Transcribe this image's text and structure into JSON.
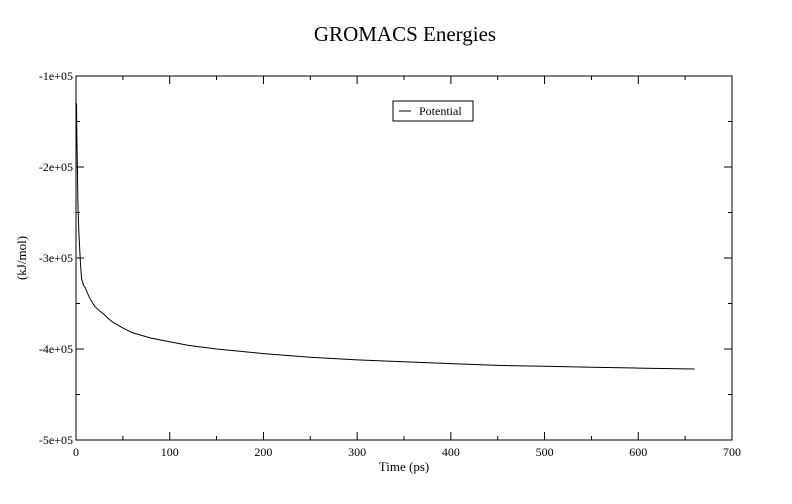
{
  "chart_data": {
    "type": "line",
    "title": "GROMACS Energies",
    "xlabel": "Time (ps)",
    "ylabel": "(kJ/mol)",
    "xlim": [
      0,
      700
    ],
    "ylim": [
      -500000,
      -100000
    ],
    "xticks": [
      0,
      100,
      200,
      300,
      400,
      500,
      600,
      700
    ],
    "xtick_labels": [
      "0",
      "100",
      "200",
      "300",
      "400",
      "500",
      "600",
      "700"
    ],
    "yticks": [
      -100000,
      -200000,
      -300000,
      -400000,
      -500000
    ],
    "ytick_labels": [
      "-1e+05",
      "-2e+05",
      "-3e+05",
      "-4e+05",
      "-5e+05"
    ],
    "grid": false,
    "legend_position": "top-center",
    "series": [
      {
        "name": "Potential",
        "color": "#000000",
        "x": [
          0,
          0.5,
          1,
          1.5,
          2,
          3,
          4,
          5,
          6,
          8,
          10,
          12,
          15,
          18,
          20,
          25,
          30,
          35,
          40,
          50,
          60,
          70,
          80,
          100,
          120,
          150,
          200,
          250,
          300,
          350,
          400,
          450,
          500,
          550,
          600,
          660
        ],
        "y": [
          -160000,
          -130000,
          -170000,
          -200000,
          -240000,
          -270000,
          -290000,
          -310000,
          -323000,
          -330000,
          -333000,
          -338000,
          -345000,
          -350000,
          -353000,
          -358000,
          -362000,
          -367000,
          -371000,
          -377000,
          -382000,
          -385000,
          -388000,
          -392000,
          -396000,
          -400000,
          -405000,
          -409000,
          -412000,
          -414000,
          -416000,
          -418000,
          -419000,
          -420000,
          -421000,
          -422000
        ]
      }
    ]
  }
}
